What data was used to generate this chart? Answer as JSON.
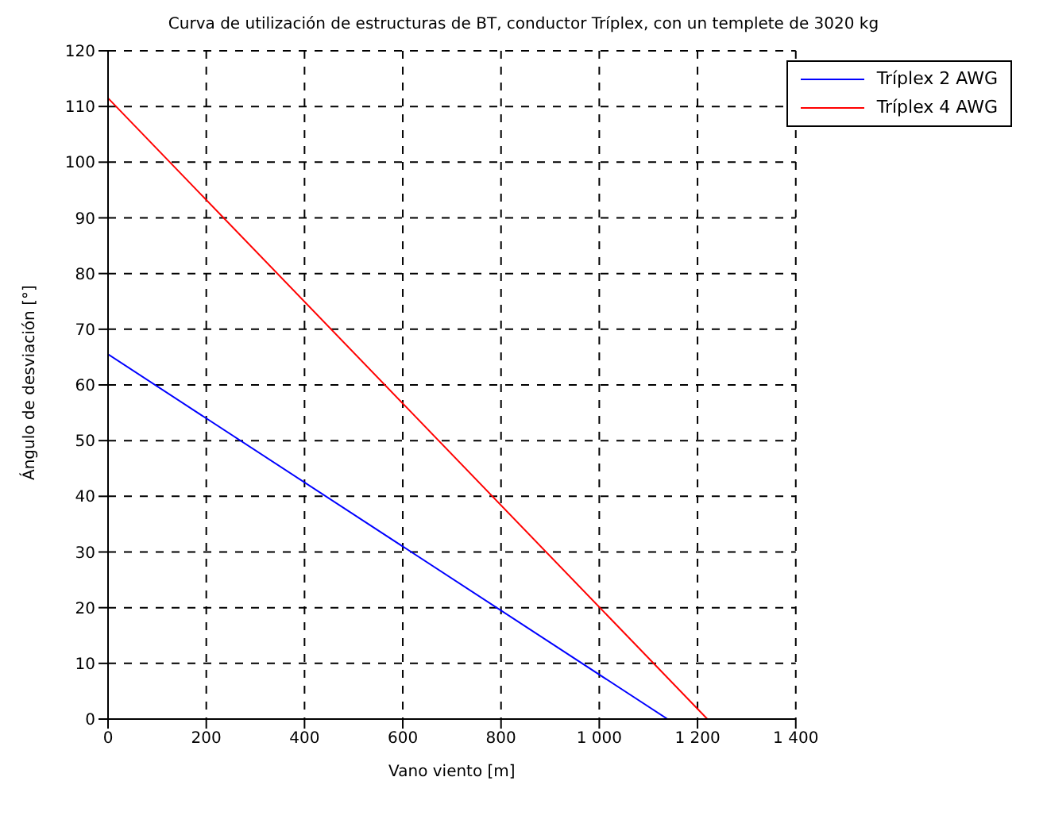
{
  "chart_data": {
    "type": "line",
    "title": "Curva de utilización de estructuras de BT, conductor Tríplex, con un templete de 3020 kg",
    "xlabel": "Vano viento [m]",
    "ylabel": "Ángulo de desviación [°]",
    "xlim": [
      0,
      1400
    ],
    "xticks": [
      0,
      200,
      400,
      600,
      800,
      {
        "value": 1000,
        "label": "1 000"
      },
      {
        "value": 1200,
        "label": "1 200"
      },
      {
        "value": 1400,
        "label": "1 400"
      }
    ],
    "ylim": [
      0,
      120
    ],
    "yticks": [
      0,
      10,
      20,
      30,
      40,
      50,
      60,
      70,
      80,
      90,
      100,
      110,
      120
    ],
    "grid": true,
    "legend": "top right",
    "line_style": "solid",
    "marker": "none",
    "series": [
      {
        "name": "Tríplex 2 AWG",
        "color": "#0000ff",
        "x": [
          0,
          1139
        ],
        "values": [
          65.5,
          0
        ]
      },
      {
        "name": "Tríplex 4 AWG",
        "color": "#ff0000",
        "x": [
          0,
          1220
        ],
        "values": [
          111.5,
          0
        ]
      }
    ]
  }
}
